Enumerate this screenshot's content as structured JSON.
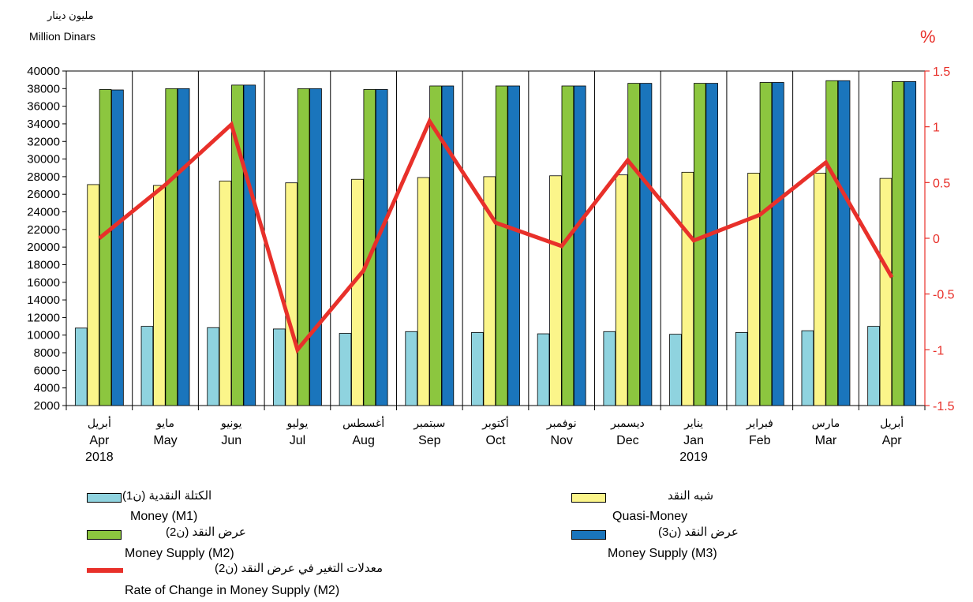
{
  "units": {
    "left_ar": "مليون دينار",
    "left_en": "Million Dinars",
    "right": "%"
  },
  "colors": {
    "m1": "#8fd3df",
    "quasi": "#fbf58a",
    "m2": "#8cc63f",
    "m3": "#1a75bc",
    "rate": "#e8302a"
  },
  "legend": {
    "m1": {
      "ar": "الكتلة النقدية (ن1)",
      "en": "Money (M1)"
    },
    "quasi": {
      "ar": "شبه النقد",
      "en": "Quasi-Money"
    },
    "m2": {
      "ar": "عرض النقد (ن2)",
      "en": "Money Supply (M2)"
    },
    "m3": {
      "ar": "عرض النقد (ن3)",
      "en": "Money Supply (M3)"
    },
    "rate": {
      "ar": "معدلات التغير في عرض النقد (ن2)",
      "en": "Rate of Change in Money Supply (M2)"
    }
  },
  "chart_data": {
    "type": "bar",
    "categories_ar": [
      "أبريل",
      "مايو",
      "يونيو",
      "يوليو",
      "أغسطس",
      "سبتمبر",
      "أكتوبر",
      "نوفمبر",
      "ديسمبر",
      "يناير",
      "فبراير",
      "مارس",
      "أبريل"
    ],
    "categories": [
      "Apr",
      "May",
      "Jun",
      "Jul",
      "Aug",
      "Sep",
      "Oct",
      "Nov",
      "Dec",
      "Jan",
      "Feb",
      "Mar",
      "Apr"
    ],
    "year_labels": [
      "2018",
      "",
      "",
      "",
      "",
      "",
      "",
      "",
      "",
      "2019",
      "",
      "",
      ""
    ],
    "series": [
      {
        "name": "Money (M1)",
        "values": [
          10800,
          11000,
          10850,
          10700,
          10200,
          10400,
          10300,
          10150,
          10400,
          10100,
          10300,
          10500,
          11000
        ]
      },
      {
        "name": "Quasi-Money",
        "values": [
          27100,
          27000,
          27500,
          27300,
          27700,
          27900,
          28000,
          28100,
          28200,
          28500,
          28400,
          28400,
          27800
        ]
      },
      {
        "name": "Money Supply (M2)",
        "values": [
          37900,
          38000,
          38400,
          38000,
          37900,
          38300,
          38300,
          38300,
          38600,
          38600,
          38700,
          38900,
          38800
        ]
      },
      {
        "name": "Money Supply (M3)",
        "values": [
          37850,
          38000,
          38400,
          38000,
          37900,
          38300,
          38300,
          38300,
          38600,
          38600,
          38700,
          38900,
          38800
        ]
      }
    ],
    "line_series": {
      "name": "Rate of Change in Money Supply (M2)",
      "values": [
        0.0,
        0.48,
        1.02,
        -1.0,
        -0.29,
        1.05,
        0.14,
        -0.07,
        0.7,
        -0.02,
        0.21,
        0.68,
        -0.35
      ]
    },
    "ylim": [
      2000,
      40000
    ],
    "yticks": [
      2000,
      4000,
      6000,
      8000,
      10000,
      12000,
      14000,
      16000,
      18000,
      20000,
      22000,
      24000,
      26000,
      28000,
      30000,
      32000,
      34000,
      36000,
      38000,
      40000
    ],
    "y2lim": [
      -1.5,
      1.5
    ],
    "y2ticks": [
      -1.5,
      -1,
      -0.5,
      0,
      0.5,
      1,
      1.5
    ],
    "y2ticklabels": [
      "-1.5",
      "-1",
      "-0.5",
      "0",
      "0.5",
      "1",
      "1.5"
    ],
    "grid": "vertical",
    "legend_position": "bottom"
  }
}
